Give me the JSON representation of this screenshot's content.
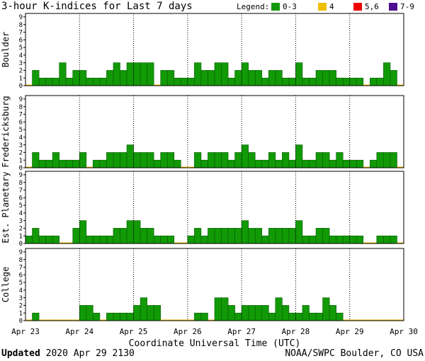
{
  "title": "3-hour K-indices for Last 7 days",
  "legend": {
    "label": "Legend:",
    "items": [
      {
        "label": "0-3",
        "color": "#119a06"
      },
      {
        "label": "4",
        "color": "#efc000"
      },
      {
        "label": "5,6",
        "color": "#ef0000"
      },
      {
        "label": "7-9",
        "color": "#4b0f8f"
      }
    ]
  },
  "footer": {
    "updated_label": "Updated",
    "updated_value": "2020 Apr 29 2130",
    "credit": "NOAA/SWPC Boulder, CO USA"
  },
  "chart_data": {
    "type": "bar",
    "xlabel": "Coordinate Universal Time (UTC)",
    "x_ticks": [
      "Apr 23",
      "Apr 24",
      "Apr 25",
      "Apr 26",
      "Apr 27",
      "Apr 28",
      "Apr 29",
      "Apr 30"
    ],
    "ylim": [
      0,
      9
    ],
    "y_ticks": [
      0,
      1,
      2,
      3,
      4,
      5,
      6,
      7,
      8,
      9
    ],
    "bins_per_day": 8,
    "series": [
      {
        "name": "Boulder",
        "values": [
          0,
          2,
          1,
          1,
          1,
          3,
          1,
          2,
          2,
          1,
          1,
          1,
          2,
          3,
          2,
          3,
          3,
          3,
          3,
          0,
          2,
          2,
          1,
          1,
          1,
          3,
          2,
          2,
          3,
          3,
          1,
          2,
          3,
          2,
          2,
          1,
          2,
          2,
          1,
          1,
          3,
          1,
          1,
          2,
          2,
          2,
          1,
          1,
          1,
          1,
          0,
          1,
          1,
          3,
          2,
          0
        ]
      },
      {
        "name": "Fredericksburg",
        "values": [
          0,
          2,
          1,
          1,
          2,
          1,
          1,
          1,
          2,
          0,
          1,
          1,
          2,
          2,
          2,
          3,
          2,
          2,
          2,
          1,
          2,
          2,
          1,
          0,
          0,
          2,
          1,
          2,
          2,
          2,
          1,
          2,
          3,
          2,
          1,
          1,
          2,
          1,
          2,
          1,
          3,
          1,
          1,
          2,
          2,
          1,
          2,
          1,
          1,
          1,
          0,
          1,
          2,
          2,
          2,
          0
        ]
      },
      {
        "name": "Est. Planetary",
        "values": [
          1,
          2,
          1,
          1,
          1,
          0,
          0,
          2,
          3,
          1,
          1,
          1,
          1,
          2,
          2,
          3,
          3,
          2,
          2,
          1,
          1,
          1,
          0,
          0,
          1,
          2,
          1,
          2,
          2,
          2,
          2,
          2,
          3,
          2,
          2,
          1,
          2,
          2,
          2,
          2,
          3,
          1,
          1,
          2,
          2,
          1,
          1,
          1,
          1,
          1,
          0,
          0,
          1,
          1,
          1,
          0
        ]
      },
      {
        "name": "College",
        "values": [
          0,
          1,
          0,
          0,
          0,
          0,
          0,
          0,
          2,
          2,
          1,
          0,
          1,
          1,
          1,
          1,
          2,
          3,
          2,
          2,
          0,
          0,
          0,
          0,
          0,
          1,
          1,
          0,
          3,
          3,
          2,
          1,
          2,
          2,
          2,
          2,
          1,
          3,
          2,
          1,
          1,
          2,
          1,
          1,
          3,
          2,
          1,
          0,
          0,
          0,
          0,
          0,
          0,
          0,
          0,
          0
        ]
      }
    ]
  }
}
